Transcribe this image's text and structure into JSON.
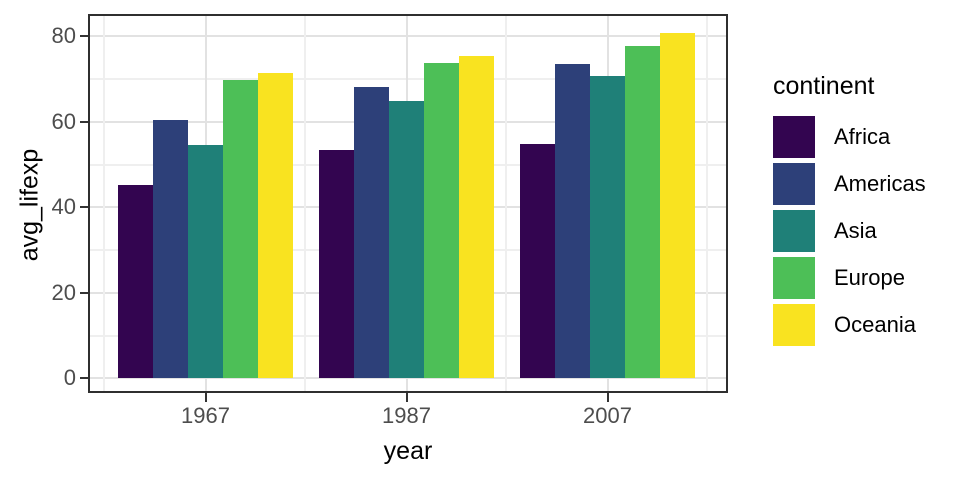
{
  "chart_data": {
    "type": "bar",
    "title": "",
    "xlabel": "year",
    "ylabel": "avg_lifexp",
    "categories": [
      "1967",
      "1987",
      "2007"
    ],
    "series": [
      {
        "name": "Africa",
        "color": "#330550",
        "values": [
          45.33,
          53.34,
          54.81
        ]
      },
      {
        "name": "Americas",
        "color": "#2d4079",
        "values": [
          60.41,
          68.09,
          73.61
        ]
      },
      {
        "name": "Asia",
        "color": "#1f8078",
        "values": [
          54.66,
          64.85,
          70.73
        ]
      },
      {
        "name": "Europe",
        "color": "#4dbf57",
        "values": [
          69.74,
          73.64,
          77.65
        ]
      },
      {
        "name": "Oceania",
        "color": "#f9e320",
        "values": [
          71.31,
          75.32,
          80.72
        ]
      }
    ],
    "y_ticks": [
      0,
      20,
      40,
      60,
      80
    ],
    "y_minor_ticks": [
      10,
      30,
      50,
      70
    ],
    "ylim": [
      -3.4,
      85.2
    ],
    "legend_title": "continent",
    "legend_position": "right",
    "grid": true,
    "panel_background": "#ffffff",
    "major_grid_color": "#e2e2e2",
    "minor_grid_color": "#efefef",
    "axis_text_color": "#4d4d4d",
    "axis_title_color": "#000000"
  }
}
